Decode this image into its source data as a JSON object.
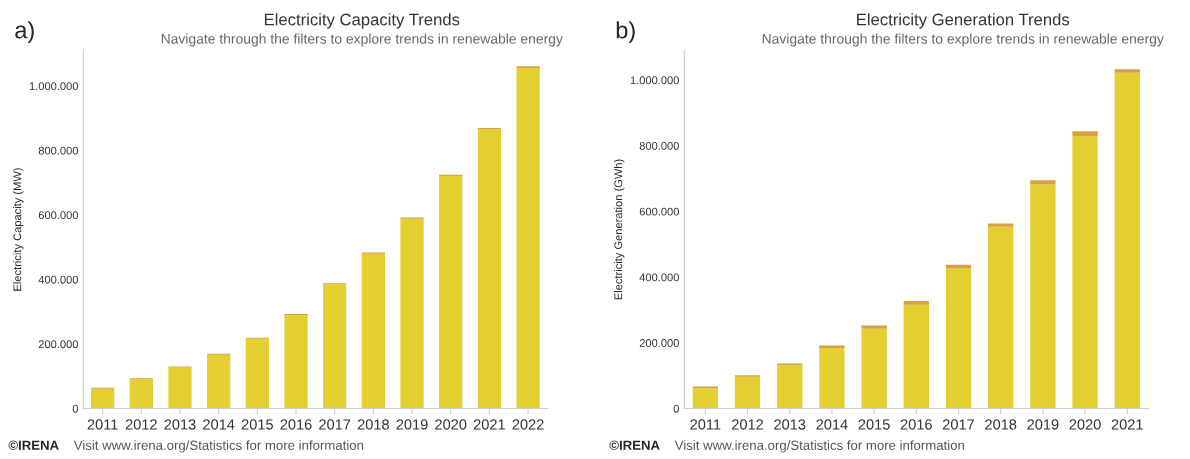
{
  "chart_data": [
    {
      "type": "bar",
      "title": "Electricity Capacity Trends",
      "subtitle": "Navigate through the filters to explore trends in renewable energy",
      "ylabel": "Electricity Capacity (MW)",
      "stacked": true,
      "categories": [
        "2011",
        "2012",
        "2013",
        "2014",
        "2015",
        "2016",
        "2017",
        "2018",
        "2019",
        "2020",
        "2021",
        "2022"
      ],
      "series": [
        {
          "color": "#e3cf31",
          "values": [
            61000,
            91000,
            127000,
            167000,
            216000,
            290000,
            385000,
            480000,
            588000,
            721000,
            866000,
            1056000
          ]
        },
        {
          "color": "#d9a040",
          "values": [
            3000,
            3000,
            3000,
            3000,
            3000,
            3000,
            3000,
            4000,
            4000,
            4000,
            4000,
            5000
          ]
        }
      ],
      "ylim": [
        0,
        1110000
      ],
      "yticks": [
        0,
        {
          "value": 200000,
          "label": "200.000"
        },
        {
          "value": 400000,
          "label": "400.000"
        },
        {
          "value": 600000,
          "label": "600.000"
        },
        {
          "value": 800000,
          "label": "800.000"
        },
        {
          "value": 1000000,
          "label": "1.000.000"
        }
      ],
      "grid": false,
      "legend": false,
      "annotations": [
        "a)",
        "©IRENA",
        "Visit www.irena.org/Statistics for more information"
      ]
    },
    {
      "type": "bar",
      "title": "Electricity Generation Trends",
      "subtitle": "Navigate through the filters to explore trends in renewable energy",
      "ylabel": "Electricity Generation (GWh)",
      "stacked": true,
      "categories": [
        "2011",
        "2012",
        "2013",
        "2014",
        "2015",
        "2016",
        "2017",
        "2018",
        "2019",
        "2020",
        "2021"
      ],
      "series": [
        {
          "color": "#e3cf31",
          "values": [
            62000,
            97000,
            132000,
            184000,
            243000,
            316000,
            426000,
            553000,
            682000,
            829000,
            1022000
          ]
        },
        {
          "color": "#d9a040",
          "values": [
            5000,
            4000,
            5000,
            8000,
            10000,
            11000,
            12000,
            10000,
            13000,
            15000,
            11000
          ]
        }
      ],
      "ylim": [
        0,
        1090000
      ],
      "yticks": [
        0,
        {
          "value": 200000,
          "label": "200.000"
        },
        {
          "value": 400000,
          "label": "400.000"
        },
        {
          "value": 600000,
          "label": "600.000"
        },
        {
          "value": 800000,
          "label": "800.000"
        },
        {
          "value": 1000000,
          "label": "1.000.000"
        }
      ],
      "grid": false,
      "legend": false,
      "annotations": [
        "b)",
        "©IRENA",
        "Visit www.irena.org/Statistics for more information"
      ]
    }
  ]
}
